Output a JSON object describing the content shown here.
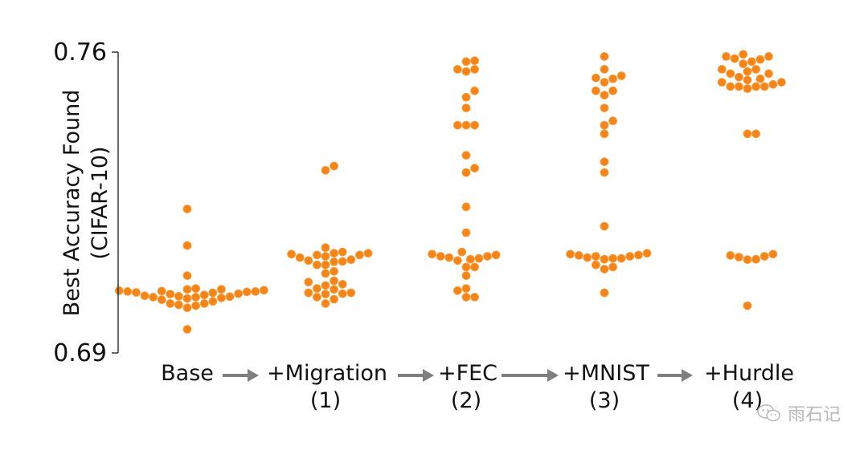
{
  "chart_data": {
    "type": "swarm",
    "ylabel_lines": [
      "Best Accuracy Found",
      "(CIFAR-10)"
    ],
    "ylim": [
      0.69,
      0.76
    ],
    "yticks": [
      "0.76",
      "0.69"
    ],
    "colors": {
      "point": "#f58518",
      "point_edge": "#f7a54a",
      "axis": "#333333",
      "arrow": "#7f7f7f"
    },
    "categories": [
      {
        "name": "Base",
        "step": "",
        "values": [
          0.7005,
          0.7015,
          0.7024,
          0.7043,
          0.7032,
          0.7045,
          0.7027,
          0.7033,
          0.7031,
          0.7042,
          0.7028,
          0.7035,
          0.703,
          0.704,
          0.7038,
          0.7041,
          0.7044,
          0.7048,
          0.705,
          0.7046,
          0.7043,
          0.7037,
          0.702,
          0.701,
          0.6955,
          0.715,
          0.7235,
          0.7015,
          0.7048,
          0.7012,
          0.703,
          0.708
        ]
      },
      {
        "name": "+Migration",
        "step": "(1)",
        "values": [
          0.703,
          0.704,
          0.7025,
          0.7015,
          0.7038,
          0.7037,
          0.704,
          0.7065,
          0.7068,
          0.709,
          0.7105,
          0.7128,
          0.7132,
          0.7135,
          0.713,
          0.7128,
          0.7125,
          0.7122,
          0.7117,
          0.7115,
          0.7113,
          0.7132,
          0.7105,
          0.7145,
          0.7325,
          0.7335,
          0.7048,
          0.705,
          0.7057,
          0.706,
          0.7085,
          0.7112
        ]
      },
      {
        "name": "+FEC",
        "step": "(2)",
        "values": [
          0.703,
          0.7045,
          0.703,
          0.705,
          0.708,
          0.71,
          0.7125,
          0.7115,
          0.7118,
          0.713,
          0.7128,
          0.7122,
          0.7135,
          0.712,
          0.7125,
          0.71,
          0.718,
          0.724,
          0.732,
          0.733,
          0.736,
          0.743,
          0.743,
          0.743,
          0.747,
          0.7495,
          0.751,
          0.758,
          0.7578,
          0.756,
          0.756,
          0.7555
        ]
      },
      {
        "name": "+MNIST",
        "step": "(3)",
        "values": [
          0.704,
          0.7095,
          0.7105,
          0.712,
          0.7127,
          0.7125,
          0.713,
          0.7132,
          0.7128,
          0.712,
          0.7122,
          0.7118,
          0.7125,
          0.71,
          0.7195,
          0.732,
          0.7345,
          0.741,
          0.743,
          0.744,
          0.747,
          0.75,
          0.751,
          0.7538,
          0.754,
          0.7545,
          0.753,
          0.751,
          0.759,
          0.756
        ]
      },
      {
        "name": "+Hurdle",
        "step": "(4)",
        "values": [
          0.701,
          0.7125,
          0.7118,
          0.7117,
          0.713,
          0.7123,
          0.7127,
          0.741,
          0.741,
          0.753,
          0.7535,
          0.7538,
          0.7542,
          0.752,
          0.752,
          0.7525,
          0.7515,
          0.755,
          0.7555,
          0.756,
          0.7573,
          0.7583,
          0.759,
          0.7595,
          0.759,
          0.7585,
          0.7578,
          0.752,
          0.752,
          0.753,
          0.755,
          0.756
        ]
      }
    ]
  },
  "watermark": {
    "text": "雨石记",
    "icon": "wechat-icon"
  }
}
